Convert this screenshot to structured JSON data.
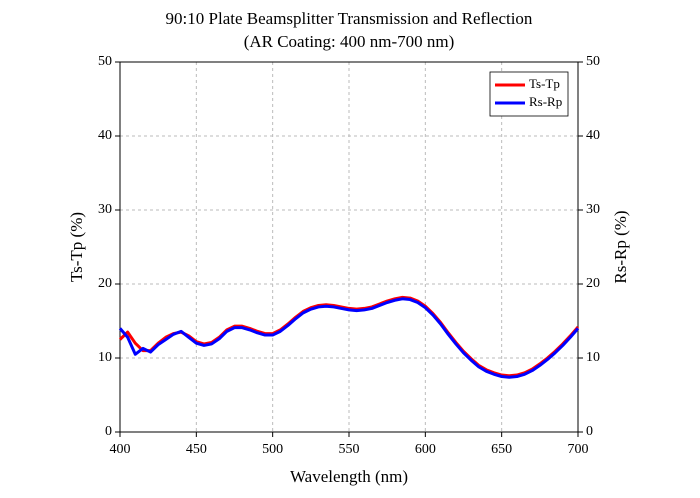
{
  "chart_data": {
    "type": "line",
    "title": "90:10 Plate Beamsplitter Transmission and Reflection",
    "subtitle": "(AR Coating: 400 nm-700 nm)",
    "xlabel": "Wavelength (nm)",
    "ylabel": "Ts-Tp (%)",
    "y2label": "Rs-Rp (%)",
    "x": [
      400,
      405,
      410,
      415,
      420,
      425,
      430,
      435,
      440,
      445,
      450,
      455,
      460,
      465,
      470,
      475,
      480,
      485,
      490,
      495,
      500,
      505,
      510,
      515,
      520,
      525,
      530,
      535,
      540,
      545,
      550,
      555,
      560,
      565,
      570,
      575,
      580,
      585,
      590,
      595,
      600,
      605,
      610,
      615,
      620,
      625,
      630,
      635,
      640,
      645,
      650,
      655,
      660,
      665,
      670,
      675,
      680,
      685,
      690,
      695,
      700
    ],
    "series": [
      {
        "name": "Ts-Tp",
        "color": "#ff0000",
        "values": [
          12.5,
          13.5,
          12,
          11,
          11,
          12,
          12.8,
          13.3,
          13.5,
          13,
          12.2,
          11.9,
          12.1,
          12.8,
          13.8,
          14.3,
          14.3,
          14,
          13.6,
          13.3,
          13.3,
          13.8,
          14.6,
          15.5,
          16.3,
          16.8,
          17.1,
          17.2,
          17.1,
          16.9,
          16.7,
          16.6,
          16.7,
          16.9,
          17.3,
          17.7,
          18,
          18.2,
          18.1,
          17.7,
          17,
          16,
          14.8,
          13.4,
          12.1,
          10.9,
          9.9,
          9,
          8.4,
          8,
          7.7,
          7.6,
          7.7,
          8,
          8.5,
          9.2,
          10,
          10.9,
          11.9,
          13,
          14.2
        ]
      },
      {
        "name": "Rs-Rp",
        "color": "#0000ff",
        "axis": "y2",
        "values": [
          14,
          12.8,
          10.5,
          11.3,
          10.8,
          11.8,
          12.5,
          13.2,
          13.6,
          12.8,
          12,
          11.7,
          11.9,
          12.6,
          13.6,
          14.1,
          14.1,
          13.8,
          13.4,
          13.1,
          13.1,
          13.6,
          14.4,
          15.3,
          16.1,
          16.6,
          16.9,
          17,
          16.9,
          16.7,
          16.5,
          16.4,
          16.5,
          16.7,
          17.1,
          17.5,
          17.8,
          18,
          17.9,
          17.5,
          16.8,
          15.8,
          14.6,
          13.2,
          11.9,
          10.7,
          9.7,
          8.8,
          8.2,
          7.8,
          7.5,
          7.4,
          7.5,
          7.8,
          8.3,
          9,
          9.8,
          10.7,
          11.7,
          12.8,
          14
        ]
      }
    ],
    "xlim": [
      400,
      700
    ],
    "xticks": [
      400,
      450,
      500,
      550,
      600,
      650,
      700
    ],
    "ylim": [
      0,
      50
    ],
    "yticks": [
      0,
      10,
      20,
      30,
      40,
      50
    ],
    "y2lim": [
      0,
      50
    ],
    "y2ticks": [
      0,
      10,
      20,
      30,
      40,
      50
    ],
    "grid": true,
    "legend": "upper right"
  }
}
